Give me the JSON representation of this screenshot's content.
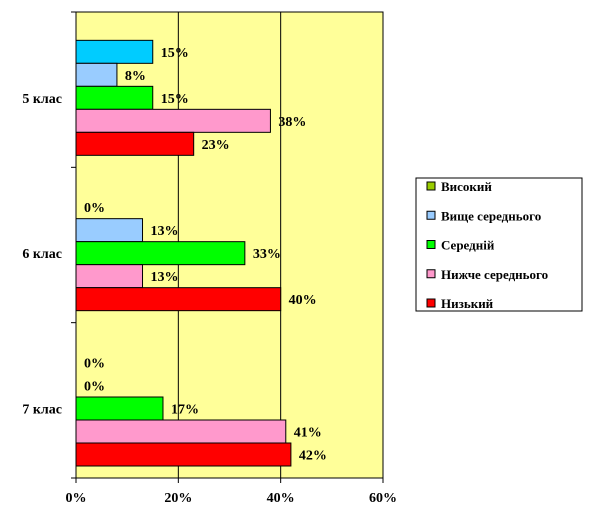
{
  "chart_data": {
    "type": "bar",
    "orientation": "horizontal",
    "categories": [
      "5 клас",
      "6 клас",
      "7 клас"
    ],
    "series": [
      {
        "name": "Високий",
        "color": "#99CC00",
        "values": [
          15,
          0,
          0
        ],
        "labels": [
          "15%",
          "0%",
          "0%"
        ]
      },
      {
        "name": "Вище середнього",
        "color": "#99CCFF",
        "values": [
          8,
          13,
          0
        ],
        "labels": [
          "8%",
          "13%",
          "0%"
        ]
      },
      {
        "name": "Середній",
        "color": "#00FF00",
        "values": [
          15,
          33,
          17
        ],
        "labels": [
          "15%",
          "33%",
          "17%"
        ]
      },
      {
        "name": "Нижче середнього",
        "color": "#FF99CC",
        "values": [
          38,
          13,
          41
        ],
        "labels": [
          "38%",
          "13%",
          "41%"
        ]
      },
      {
        "name": "Низький",
        "color": "#FF0000",
        "values": [
          23,
          40,
          42
        ],
        "labels": [
          "23%",
          "40%",
          "42%"
        ]
      }
    ],
    "bar_colors_per_category": [
      [
        "#00CCFF",
        "#99CCFF",
        "#00FF00",
        "#FF99CC",
        "#FF0000"
      ],
      [
        "#99CC00",
        "#99CCFF",
        "#00FF00",
        "#FF99CC",
        "#FF0000"
      ],
      [
        "#99CC00",
        "#99CCFF",
        "#00FF00",
        "#FF99CC",
        "#FF0000"
      ]
    ],
    "xlim": [
      0,
      60
    ],
    "xticks": [
      "0%",
      "20%",
      "40%",
      "60%"
    ],
    "grid": "vertical",
    "plot_background": "#FFFF99",
    "legend_position": "right"
  }
}
